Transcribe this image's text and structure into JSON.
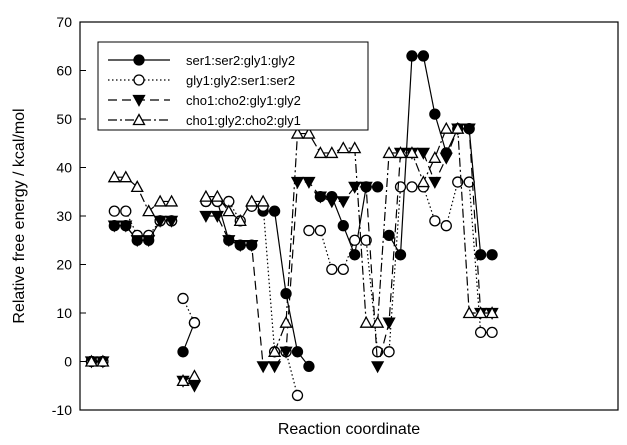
{
  "chart_data": {
    "type": "line",
    "title": "",
    "xlabel": "Reaction coordinate",
    "ylabel": "Relative free energy / kcal/mol",
    "ylim": [
      -10,
      70
    ],
    "xlim": [
      0,
      47
    ],
    "yticks": [
      -10,
      0,
      10,
      20,
      30,
      40,
      50,
      60,
      70
    ],
    "xticks_visible": false,
    "grid": false,
    "legend_position": "top-left",
    "series": [
      {
        "name": "ser1:ser2:gly1:gly2",
        "line_style": "solid",
        "marker": "filled-circle",
        "color": "#000000",
        "segments": [
          {
            "x": [
              1,
              2
            ],
            "y": [
              0,
              0
            ]
          },
          {
            "x": [
              3,
              4,
              5,
              6,
              7,
              8
            ],
            "y": [
              28,
              28,
              25,
              25,
              29,
              29
            ]
          },
          {
            "x": [
              9,
              10
            ],
            "y": [
              2,
              8
            ]
          },
          {
            "x": [
              11,
              12,
              13,
              14,
              15
            ],
            "y": [
              33,
              33,
              25,
              24,
              24
            ]
          },
          {
            "x": [
              16,
              17,
              18,
              19,
              20
            ],
            "y": [
              31,
              31,
              14,
              2,
              -1
            ]
          },
          {
            "x": [
              21,
              22,
              23,
              24,
              25,
              26
            ],
            "y": [
              34,
              34,
              28,
              22,
              36,
              36
            ]
          },
          {
            "x": [
              27,
              28,
              29,
              30,
              31,
              32,
              33,
              34,
              35
            ],
            "y": [
              26,
              22,
              63,
              63,
              51,
              43,
              48,
              48,
              22
            ]
          },
          {
            "x": [
              36
            ],
            "y": [
              22
            ]
          }
        ]
      },
      {
        "name": "gly1:gly2:ser1:ser2",
        "line_style": "dotted",
        "marker": "open-circle",
        "color": "#000000",
        "segments": [
          {
            "x": [
              1,
              2
            ],
            "y": [
              0,
              0
            ]
          },
          {
            "x": [
              3,
              4,
              5,
              6,
              7,
              8
            ],
            "y": [
              31,
              31,
              26,
              26,
              29,
              29
            ]
          },
          {
            "x": [
              9,
              10
            ],
            "y": [
              13,
              8
            ]
          },
          {
            "x": [
              11,
              12,
              13,
              14
            ],
            "y": [
              33,
              33,
              33,
              29
            ]
          },
          {
            "x": [
              15,
              16,
              17,
              18,
              19
            ],
            "y": [
              32,
              32,
              2,
              2,
              -7
            ]
          },
          {
            "x": [
              20,
              21,
              22,
              23,
              24,
              25,
              26,
              27,
              28
            ],
            "y": [
              27,
              27,
              19,
              19,
              25,
              25,
              2,
              2,
              36
            ]
          },
          {
            "x": [
              29,
              30,
              31,
              32,
              33,
              34,
              35,
              36
            ],
            "y": [
              36,
              36,
              29,
              28,
              37,
              37,
              6,
              6
            ]
          }
        ]
      },
      {
        "name": "cho1:cho2:gly1:gly2",
        "line_style": "dashed",
        "marker": "filled-triangle-down",
        "color": "#000000",
        "segments": [
          {
            "x": [
              1,
              2
            ],
            "y": [
              0,
              0
            ]
          },
          {
            "x": [
              3,
              4,
              5,
              6,
              7,
              8
            ],
            "y": [
              28,
              28,
              25,
              25,
              29,
              29
            ]
          },
          {
            "x": [
              9,
              10
            ],
            "y": [
              -4,
              -5
            ]
          },
          {
            "x": [
              11,
              12,
              13,
              14,
              15,
              16
            ],
            "y": [
              30,
              30,
              25,
              24,
              24,
              -1
            ]
          },
          {
            "x": [
              17,
              18,
              19,
              20,
              21,
              22,
              23,
              24,
              25,
              26,
              27,
              28,
              29
            ],
            "y": [
              -1,
              2,
              37,
              37,
              34,
              33,
              33,
              36,
              36,
              -1,
              8,
              43,
              43
            ]
          },
          {
            "x": [
              30,
              31,
              32,
              33,
              34,
              35,
              36
            ],
            "y": [
              43,
              37,
              42,
              48,
              48,
              10,
              10
            ]
          }
        ]
      },
      {
        "name": "cho1:gly2:cho2:gly1",
        "line_style": "dash-dot",
        "marker": "open-triangle-up",
        "color": "#000000",
        "segments": [
          {
            "x": [
              1,
              2
            ],
            "y": [
              0,
              0
            ]
          },
          {
            "x": [
              3,
              4,
              5,
              6,
              7,
              8
            ],
            "y": [
              38,
              38,
              36,
              31,
              33,
              33
            ]
          },
          {
            "x": [
              9,
              10
            ],
            "y": [
              -4,
              -3
            ]
          },
          {
            "x": [
              11,
              12,
              13,
              14,
              15,
              16
            ],
            "y": [
              34,
              34,
              31,
              29,
              33,
              33
            ]
          },
          {
            "x": [
              17,
              18,
              19,
              20,
              21,
              22,
              23,
              24,
              25
            ],
            "y": [
              2,
              8,
              47,
              47,
              43,
              43,
              44,
              44,
              8
            ]
          },
          {
            "x": [
              26,
              27,
              28,
              29,
              30,
              31,
              32,
              33,
              34,
              35,
              36
            ],
            "y": [
              8,
              43,
              43,
              43,
              37,
              42,
              48,
              48,
              10,
              10,
              10
            ]
          }
        ]
      }
    ]
  }
}
